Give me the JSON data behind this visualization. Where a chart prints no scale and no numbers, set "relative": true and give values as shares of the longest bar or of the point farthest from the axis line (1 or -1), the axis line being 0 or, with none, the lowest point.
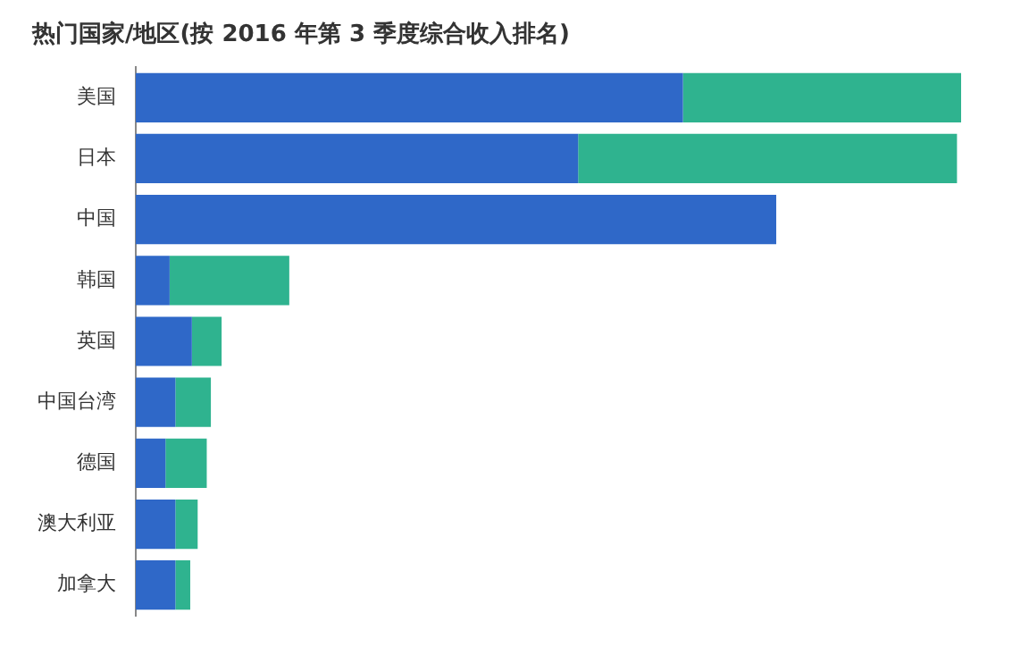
{
  "chart_data": {
    "type": "bar",
    "orientation": "horizontal",
    "stacked": true,
    "relative": true,
    "title": "热门国家/地区(按 2016 年第 3 季度综合收入排名)",
    "categories": [
      "美国",
      "日本",
      "中国",
      "韩国",
      "英国",
      "中国台湾",
      "德国",
      "澳大利亚",
      "加拿大"
    ],
    "series": [
      {
        "color": "#2f68c8",
        "values": [
          0.663,
          0.536,
          0.776,
          0.041,
          0.068,
          0.048,
          0.036,
          0.048,
          0.048
        ]
      },
      {
        "color": "#2fb38f",
        "values": [
          0.337,
          0.459,
          0,
          0.145,
          0.036,
          0.043,
          0.05,
          0.027,
          0.018
        ]
      }
    ],
    "legend": false
  }
}
